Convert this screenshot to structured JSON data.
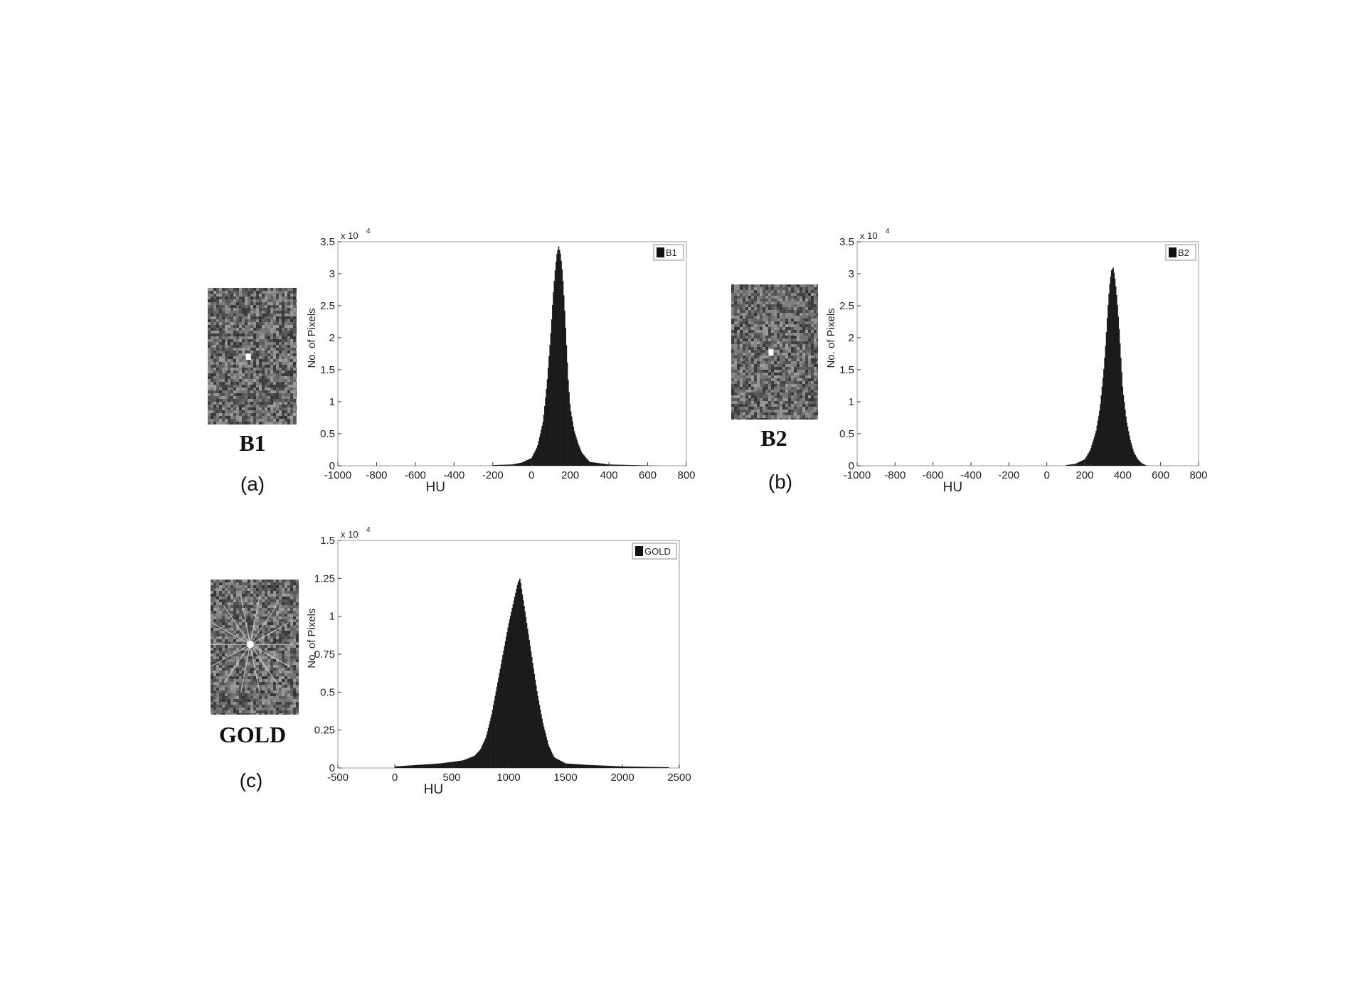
{
  "panels": [
    {
      "image_label": "B1",
      "letter": "(a)",
      "chart_data": {
        "type": "bar",
        "title": "",
        "xlabel": "HU",
        "ylabel": "No. of Pixels",
        "y_multiplier": "x 10",
        "y_exponent": "4",
        "xlim": [
          -1000,
          800
        ],
        "ylim": [
          0,
          3.5
        ],
        "xticks": [
          -1000,
          -800,
          -600,
          -400,
          -200,
          0,
          200,
          400,
          600,
          800
        ],
        "xtick_labels": [
          "-1000",
          "-800",
          "-600",
          "-400",
          "-200",
          "0",
          "200",
          "400",
          "600",
          "800"
        ],
        "yticks": [
          0,
          0.5,
          1,
          1.5,
          2,
          2.5,
          3,
          3.5
        ],
        "ytick_labels": [
          "0",
          "0.5",
          "1",
          "1.5",
          "2",
          "2.5",
          "3",
          "3.5"
        ],
        "legend": "B1",
        "legend_position": "top-right",
        "x": [
          -200,
          -100,
          -50,
          0,
          30,
          60,
          80,
          100,
          110,
          120,
          130,
          140,
          150,
          160,
          170,
          180,
          190,
          200,
          220,
          240,
          260,
          300,
          400,
          660
        ],
        "values": [
          0.01,
          0.02,
          0.05,
          0.12,
          0.3,
          0.7,
          1.3,
          2.1,
          2.6,
          3.0,
          3.3,
          3.43,
          3.3,
          3.0,
          2.5,
          1.9,
          1.3,
          0.9,
          0.55,
          0.35,
          0.2,
          0.06,
          0.02,
          0.0
        ]
      }
    },
    {
      "image_label": "B2",
      "letter": "(b)",
      "chart_data": {
        "type": "bar",
        "title": "",
        "xlabel": "HU",
        "ylabel": "No. of Pixels",
        "y_multiplier": "x 10",
        "y_exponent": "4",
        "xlim": [
          -1000,
          800
        ],
        "ylim": [
          0,
          3.5
        ],
        "xticks": [
          -1000,
          -800,
          -600,
          -400,
          -200,
          0,
          200,
          400,
          600,
          800
        ],
        "xtick_labels": [
          "-1000",
          "-800",
          "-600",
          "-400",
          "-200",
          "0",
          "200",
          "400",
          "600",
          "800"
        ],
        "yticks": [
          0,
          0.5,
          1,
          1.5,
          2,
          2.5,
          3,
          3.5
        ],
        "ytick_labels": [
          "0",
          "0.5",
          "1",
          "1.5",
          "2",
          "2.5",
          "3",
          "3.5"
        ],
        "legend": "B2",
        "legend_position": "top-right",
        "x": [
          100,
          150,
          200,
          230,
          260,
          280,
          300,
          310,
          320,
          330,
          340,
          350,
          360,
          370,
          380,
          390,
          400,
          420,
          440,
          460,
          480,
          500,
          520
        ],
        "values": [
          0.01,
          0.03,
          0.1,
          0.25,
          0.55,
          0.9,
          1.5,
          1.9,
          2.4,
          2.8,
          3.05,
          3.1,
          2.9,
          2.6,
          2.2,
          1.7,
          1.2,
          0.7,
          0.4,
          0.2,
          0.1,
          0.04,
          0.01
        ]
      }
    },
    {
      "image_label": "GOLD",
      "letter": "(c)",
      "chart_data": {
        "type": "bar",
        "title": "",
        "xlabel": "HU",
        "ylabel": "No. of Pixels",
        "y_multiplier": "x 10",
        "y_exponent": "4",
        "xlim": [
          -500,
          2500
        ],
        "ylim": [
          0,
          1.5
        ],
        "xticks": [
          -500,
          0,
          500,
          1000,
          1500,
          2000,
          2500
        ],
        "xtick_labels": [
          "-500",
          "0",
          "500",
          "1000",
          "1500",
          "2000",
          "2500"
        ],
        "yticks": [
          0,
          0.25,
          0.5,
          0.75,
          1,
          1.25,
          1.5
        ],
        "ytick_labels": [
          "0",
          "0.25",
          "0.5",
          "0.75",
          "1",
          "1.25",
          "1.5"
        ],
        "legend": "GOLD",
        "legend_position": "top-right",
        "x": [
          0,
          200,
          400,
          500,
          600,
          700,
          750,
          800,
          850,
          900,
          950,
          1000,
          1030,
          1060,
          1080,
          1100,
          1120,
          1140,
          1160,
          1180,
          1200,
          1250,
          1300,
          1350,
          1400,
          1500,
          1700,
          2000,
          2400
        ],
        "values": [
          0.01,
          0.02,
          0.03,
          0.04,
          0.05,
          0.08,
          0.12,
          0.2,
          0.35,
          0.55,
          0.75,
          0.95,
          1.05,
          1.15,
          1.22,
          1.25,
          1.15,
          1.05,
          0.95,
          0.85,
          0.75,
          0.5,
          0.3,
          0.15,
          0.07,
          0.03,
          0.02,
          0.01,
          0.005
        ]
      }
    }
  ]
}
